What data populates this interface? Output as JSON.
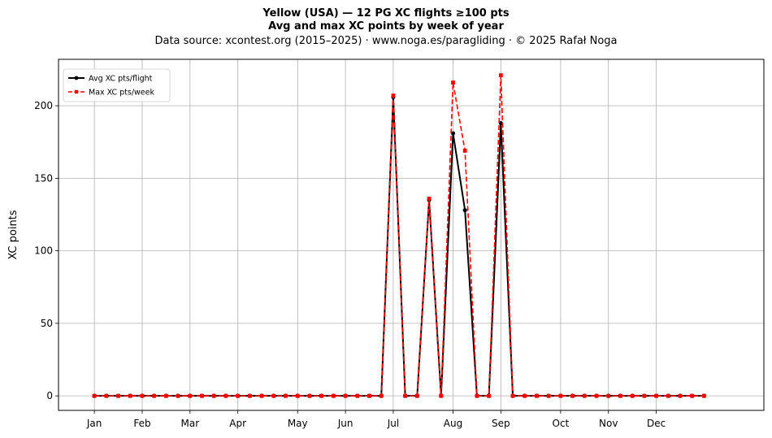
{
  "chart_data": {
    "type": "line",
    "title": "Yellow (USA)  —  12 PG XC flights ≥100 pts",
    "subtitle": "Avg and max XC points by week of year",
    "source_note": "Data source: xcontest.org (2015–2025)  ·  www.noga.es/paragliding  ·  © 2025 Rafał Noga",
    "xlabel": "",
    "ylabel": "XC points",
    "ylim": [
      -10,
      232
    ],
    "xlim": [
      -3,
      56
    ],
    "yticks": [
      0,
      50,
      100,
      150,
      200
    ],
    "xtick_labels": [
      "Jan",
      "Feb",
      "Mar",
      "Apr",
      "May",
      "Jun",
      "Jul",
      "Aug",
      "Sep",
      "Oct",
      "Nov",
      "Dec"
    ],
    "xtick_weeks": [
      0,
      4,
      8,
      12,
      17,
      21,
      25,
      30,
      34,
      39,
      43,
      47
    ],
    "grid": true,
    "legend_position": "top-left",
    "x": [
      0,
      1,
      2,
      3,
      4,
      5,
      6,
      7,
      8,
      9,
      10,
      11,
      12,
      13,
      14,
      15,
      16,
      17,
      18,
      19,
      20,
      21,
      22,
      23,
      24,
      25,
      26,
      27,
      28,
      29,
      30,
      31,
      32,
      33,
      34,
      35,
      36,
      37,
      38,
      39,
      40,
      41,
      42,
      43,
      44,
      45,
      46,
      47,
      48,
      49,
      50,
      51
    ],
    "series": [
      {
        "name": "Avg XC pts/flight",
        "color": "#000000",
        "style": "solid",
        "marker": "circle",
        "values": [
          0,
          0,
          0,
          0,
          0,
          0,
          0,
          0,
          0,
          0,
          0,
          0,
          0,
          0,
          0,
          0,
          0,
          0,
          0,
          0,
          0,
          0,
          0,
          0,
          0,
          206,
          0,
          0,
          135,
          0,
          181,
          128,
          0,
          0,
          188,
          0,
          0,
          0,
          0,
          0,
          0,
          0,
          0,
          0,
          0,
          0,
          0,
          0,
          0,
          0,
          0,
          0
        ]
      },
      {
        "name": "Max XC pts/week",
        "color": "#ff0000",
        "style": "dashed",
        "marker": "square",
        "values": [
          0,
          0,
          0,
          0,
          0,
          0,
          0,
          0,
          0,
          0,
          0,
          0,
          0,
          0,
          0,
          0,
          0,
          0,
          0,
          0,
          0,
          0,
          0,
          0,
          0,
          207,
          0,
          0,
          136,
          0,
          216,
          169,
          0,
          0,
          221,
          0,
          0,
          0,
          0,
          0,
          0,
          0,
          0,
          0,
          0,
          0,
          0,
          0,
          0,
          0,
          0,
          0
        ]
      }
    ]
  }
}
